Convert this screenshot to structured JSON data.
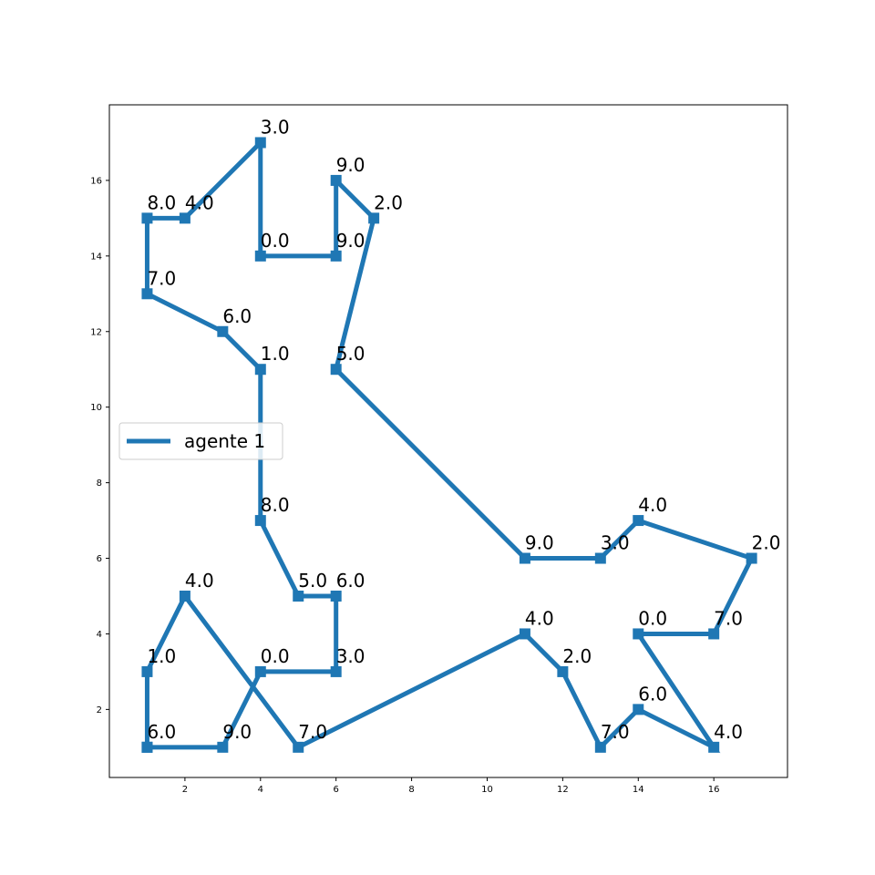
{
  "chart_data": {
    "type": "line",
    "title": "",
    "xlabel": "",
    "ylabel": "",
    "xlim": [
      0.0,
      17.95
    ],
    "ylim": [
      0.2,
      18.0
    ],
    "xticks": [
      2,
      4,
      6,
      8,
      10,
      12,
      14,
      16
    ],
    "yticks": [
      2,
      4,
      6,
      8,
      10,
      12,
      14,
      16
    ],
    "grid": false,
    "legend": {
      "position": "center-left",
      "entries": [
        "agente 1"
      ]
    },
    "series": [
      {
        "name": "agente 1",
        "color": "#1f77b4",
        "marker": "square",
        "points": [
          {
            "x": 1,
            "y": 1,
            "label": "6.0"
          },
          {
            "x": 1,
            "y": 3,
            "label": "1.0"
          },
          {
            "x": 2,
            "y": 5,
            "label": "4.0"
          },
          {
            "x": 5,
            "y": 1,
            "label": "7.0"
          },
          {
            "x": 11,
            "y": 4,
            "label": "4.0"
          },
          {
            "x": 12,
            "y": 3,
            "label": "2.0"
          },
          {
            "x": 13,
            "y": 1,
            "label": "7.0"
          },
          {
            "x": 14,
            "y": 2,
            "label": "6.0"
          },
          {
            "x": 16,
            "y": 1,
            "label": "4.0"
          },
          {
            "x": 14,
            "y": 4,
            "label": "0.0"
          },
          {
            "x": 16,
            "y": 4,
            "label": "7.0"
          },
          {
            "x": 17,
            "y": 6,
            "label": "2.0"
          },
          {
            "x": 14,
            "y": 7,
            "label": "4.0"
          },
          {
            "x": 13,
            "y": 6,
            "label": "3.0"
          },
          {
            "x": 11,
            "y": 6,
            "label": "9.0"
          },
          {
            "x": 6,
            "y": 11,
            "label": "5.0"
          },
          {
            "x": 7,
            "y": 15,
            "label": "2.0"
          },
          {
            "x": 6,
            "y": 16,
            "label": "9.0"
          },
          {
            "x": 6,
            "y": 14,
            "label": "9.0"
          },
          {
            "x": 4,
            "y": 14,
            "label": "0.0"
          },
          {
            "x": 4,
            "y": 17,
            "label": "3.0"
          },
          {
            "x": 2,
            "y": 15,
            "label": "4.0"
          },
          {
            "x": 1,
            "y": 15,
            "label": "8.0"
          },
          {
            "x": 1,
            "y": 13,
            "label": "7.0"
          },
          {
            "x": 3,
            "y": 12,
            "label": "6.0"
          },
          {
            "x": 4,
            "y": 11,
            "label": "1.0"
          },
          {
            "x": 4,
            "y": 7,
            "label": "8.0"
          },
          {
            "x": 5,
            "y": 5,
            "label": "5.0"
          },
          {
            "x": 6,
            "y": 5,
            "label": "6.0"
          },
          {
            "x": 6,
            "y": 3,
            "label": "3.0"
          },
          {
            "x": 4,
            "y": 3,
            "label": "0.0"
          },
          {
            "x": 3,
            "y": 1,
            "label": "9.0"
          },
          {
            "x": 1,
            "y": 1,
            "label": ""
          }
        ]
      }
    ]
  }
}
